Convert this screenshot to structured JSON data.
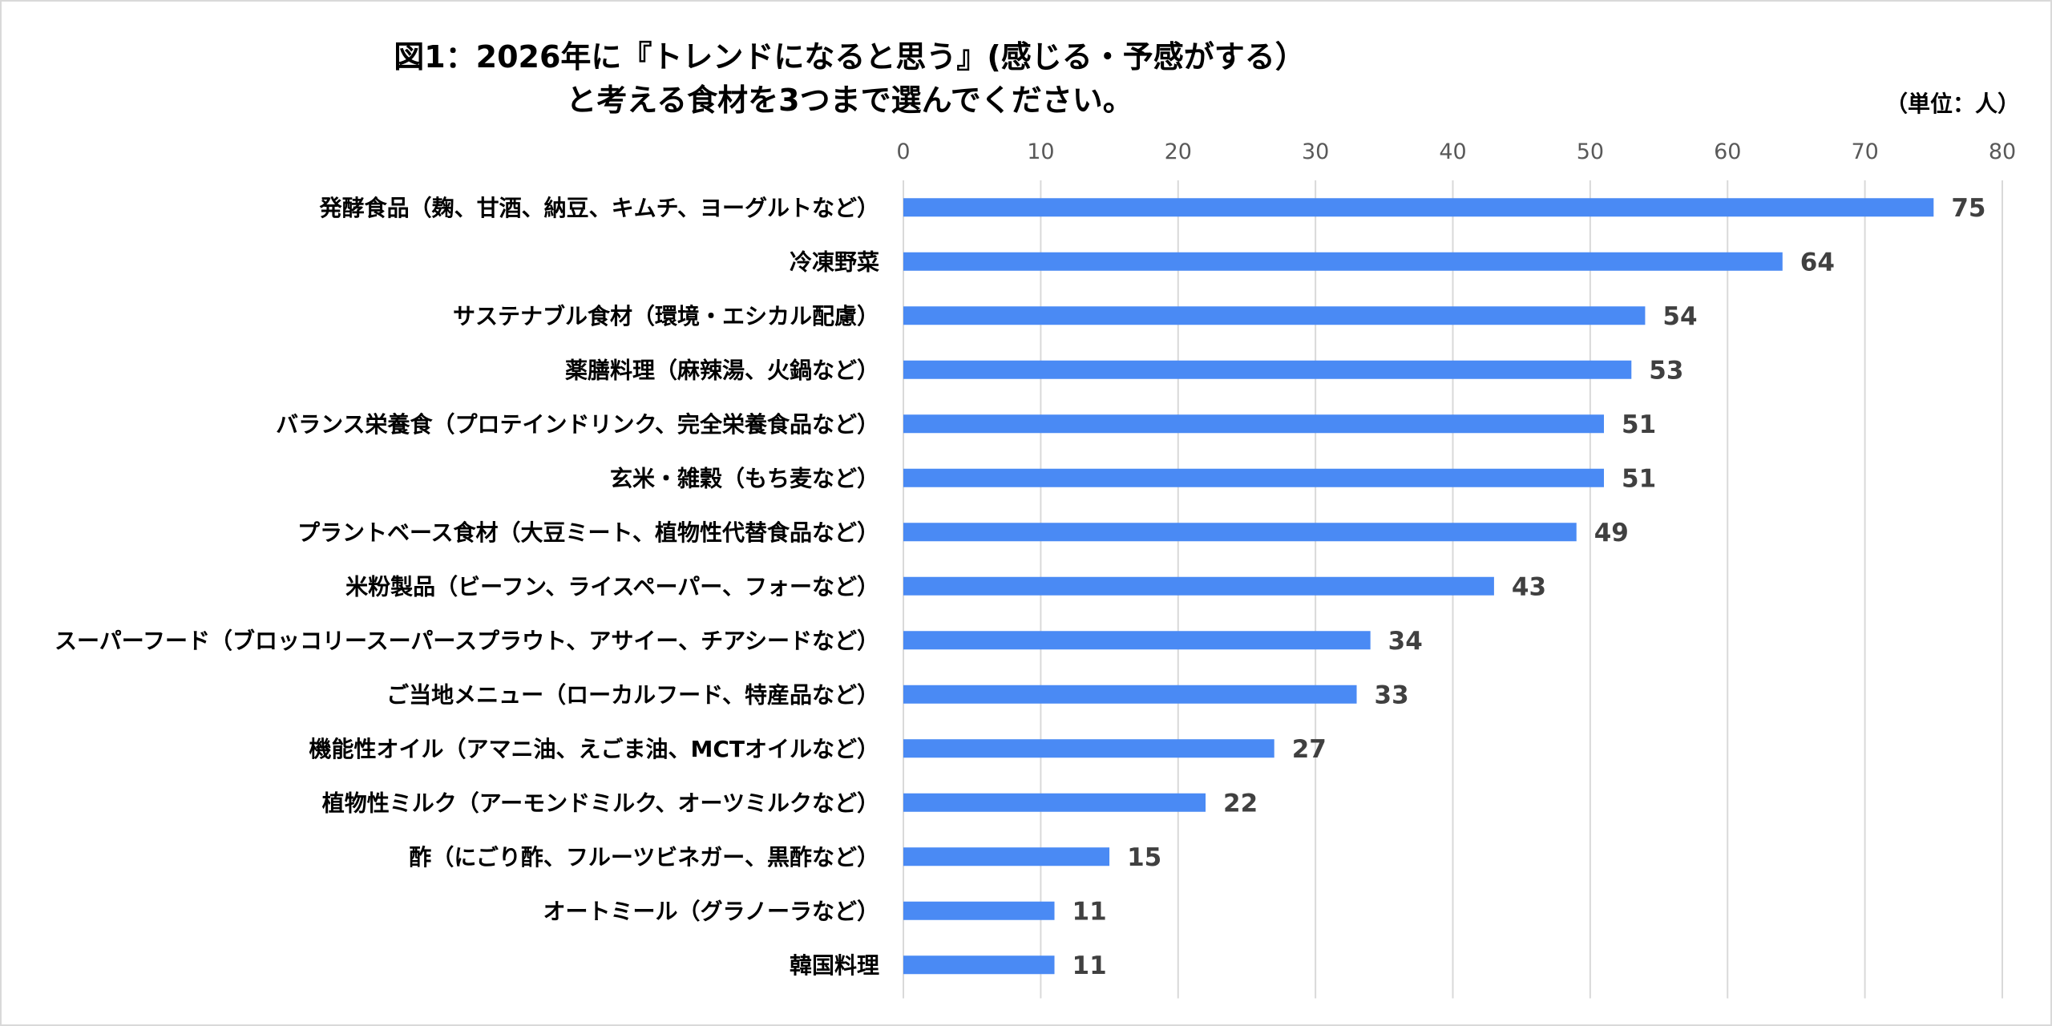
{
  "chart_data": {
    "type": "bar",
    "orientation": "horizontal",
    "title": "図1：2026年に『トレンドになると思う』(感じる・予感がする）",
    "subtitle": "と考える食材を3つまで選んでください。",
    "unit_label": "（単位：人）",
    "xlim": [
      0,
      80
    ],
    "xticks": [
      0,
      10,
      20,
      30,
      40,
      50,
      60,
      70,
      80
    ],
    "grid": true,
    "bar_color": "#4a8af4",
    "categories": [
      "発酵食品（麹、甘酒、納豆、キムチ、ヨーグルトなど）",
      "冷凍野菜",
      "サステナブル食材（環境・エシカル配慮）",
      "薬膳料理（麻辣湯、火鍋など）",
      "バランス栄養食（プロテインドリンク、完全栄養食品など）",
      "玄米・雑穀（もち麦など）",
      "プラントベース食材（大豆ミート、植物性代替食品など）",
      "米粉製品（ビーフン、ライスペーパー、フォーなど）",
      "スーパーフード（ブロッコリースーパースプラウト、アサイー、チアシードなど）",
      "ご当地メニュー（ローカルフード、特産品など）",
      "機能性オイル（アマニ油、えごま油、MCTオイルなど）",
      "植物性ミルク（アーモンドミルク、オーツミルクなど）",
      "酢（にごり酢、フルーツビネガー、黒酢など）",
      "オートミール（グラノーラなど）",
      "韓国料理"
    ],
    "values": [
      75,
      64,
      54,
      53,
      51,
      51,
      49,
      43,
      34,
      33,
      27,
      22,
      15,
      11,
      11
    ]
  }
}
